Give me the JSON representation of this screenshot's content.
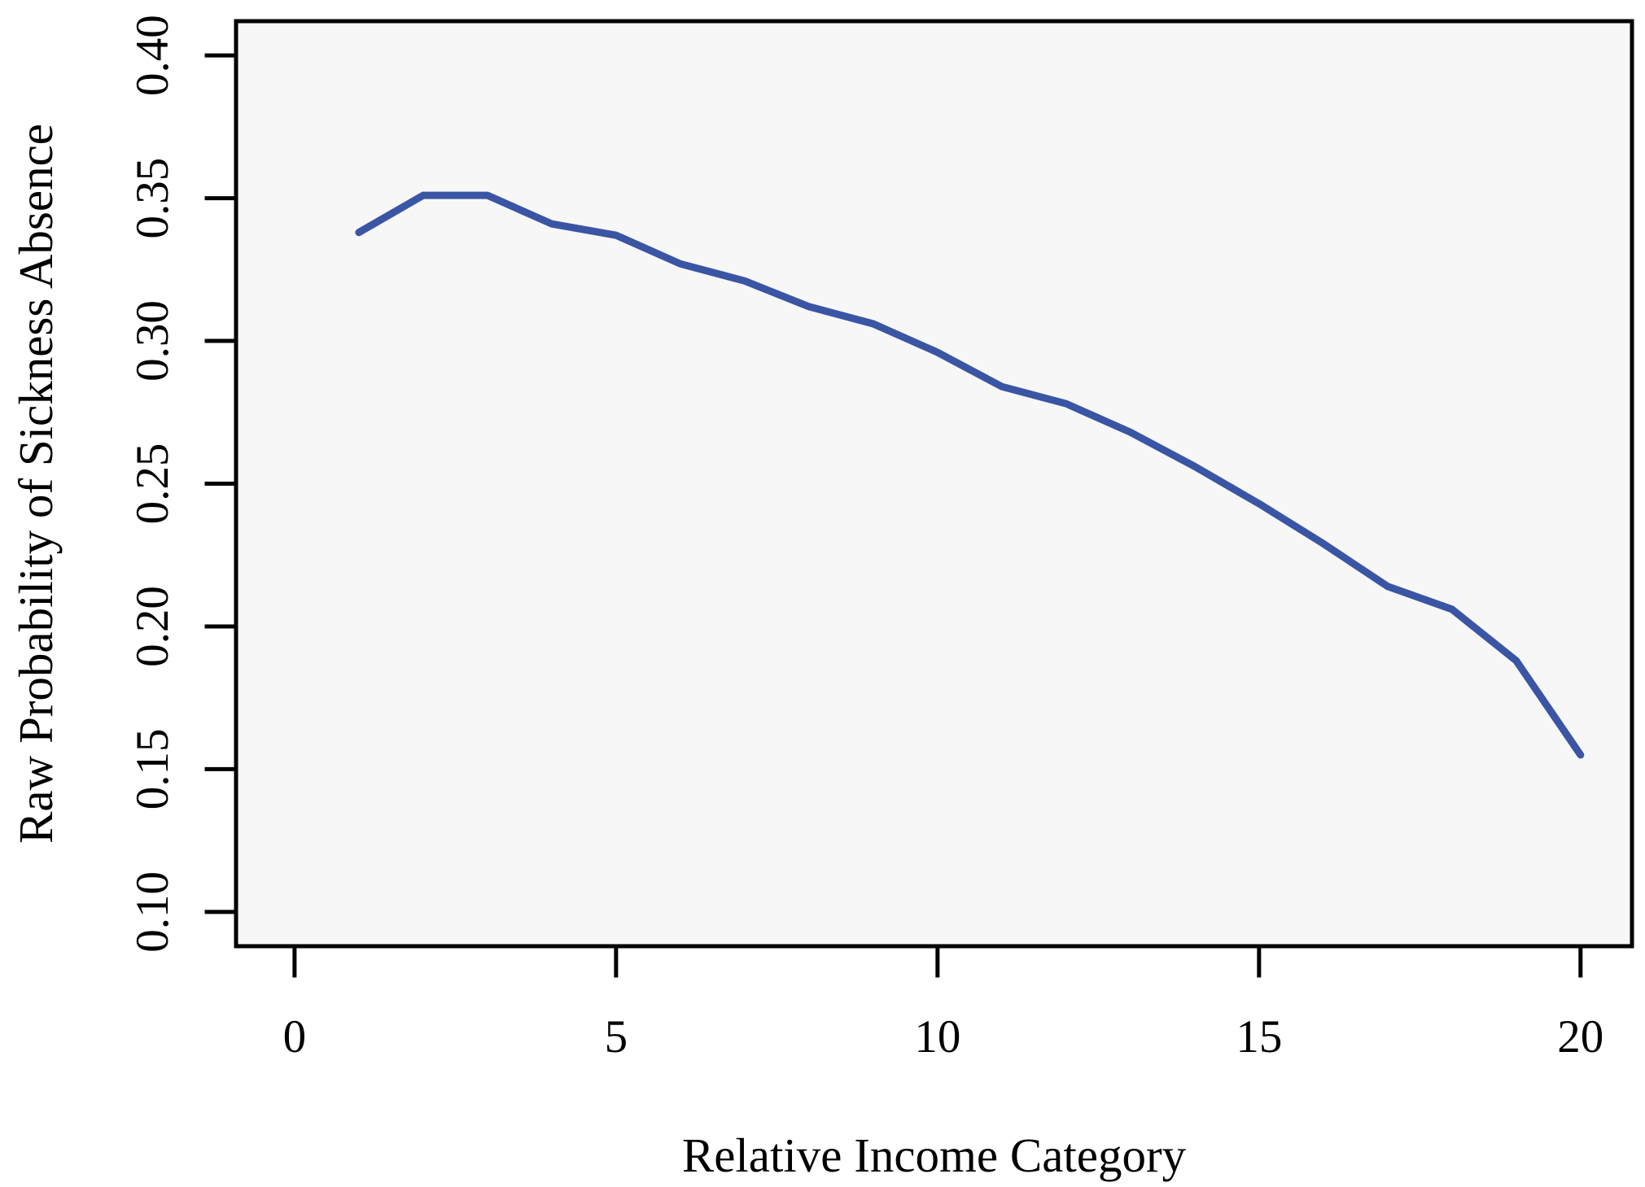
{
  "chart_data": {
    "type": "line",
    "title": "",
    "xlabel": "Relative Income Category",
    "ylabel": "Raw Probability of Sickness Absence",
    "x": [
      1,
      2,
      3,
      4,
      5,
      6,
      7,
      8,
      9,
      10,
      11,
      12,
      13,
      14,
      15,
      16,
      17,
      18,
      19,
      20
    ],
    "y": [
      0.338,
      0.351,
      0.351,
      0.341,
      0.337,
      0.327,
      0.321,
      0.312,
      0.306,
      0.296,
      0.284,
      0.278,
      0.268,
      0.256,
      0.243,
      0.229,
      0.214,
      0.206,
      0.188,
      0.155
    ],
    "series": [
      {
        "name": "Raw probability",
        "values": [
          0.338,
          0.351,
          0.351,
          0.341,
          0.337,
          0.327,
          0.321,
          0.312,
          0.306,
          0.296,
          0.284,
          0.278,
          0.268,
          0.256,
          0.243,
          0.229,
          0.214,
          0.206,
          0.188,
          0.155
        ]
      }
    ],
    "xlim": [
      -0.91,
      20.8
    ],
    "ylim": [
      0.088,
      0.412
    ],
    "xticks": [
      0,
      5,
      10,
      15,
      20
    ],
    "xtick_labels": [
      "0",
      "5",
      "10",
      "15",
      "20"
    ],
    "yticks": [
      0.1,
      0.15,
      0.2,
      0.25,
      0.3,
      0.35,
      0.4
    ],
    "ytick_labels": [
      "0.10",
      "0.15",
      "0.20",
      "0.25",
      "0.30",
      "0.35",
      "0.40"
    ],
    "grid": false,
    "legend_position": "none",
    "line_color": "#3b55a5",
    "plot_bg": "#f7f7f7",
    "outer_bg": "#ffffff",
    "axis_color": "#000000"
  }
}
